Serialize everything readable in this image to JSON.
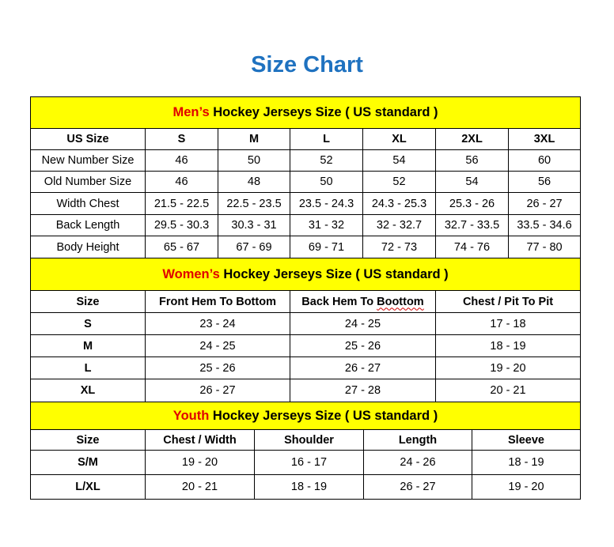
{
  "title": "Size Chart",
  "colors": {
    "title": "#1f72c0",
    "header_bg": "#ffff00",
    "accent": "#e00000"
  },
  "men": {
    "header_accent": "Men’s",
    "header_rest": " Hockey Jerseys Size ( US standard )",
    "columns": [
      "US Size",
      "S",
      "M",
      "L",
      "XL",
      "2XL",
      "3XL"
    ],
    "rows": [
      [
        "New Number Size",
        "46",
        "50",
        "52",
        "54",
        "56",
        "60"
      ],
      [
        "Old Number Size",
        "46",
        "48",
        "50",
        "52",
        "54",
        "56"
      ],
      [
        "Width Chest",
        "21.5 - 22.5",
        "22.5 - 23.5",
        "23.5 - 24.3",
        "24.3 - 25.3",
        "25.3 - 26",
        "26 - 27"
      ],
      [
        "Back Length",
        "29.5 - 30.3",
        "30.3 - 31",
        "31 - 32",
        "32 - 32.7",
        "32.7 - 33.5",
        "33.5 - 34.6"
      ],
      [
        "Body Height",
        "65 - 67",
        "67 - 69",
        "69 - 71",
        "72 - 73",
        "74 - 76",
        "77 - 80"
      ]
    ]
  },
  "women": {
    "header_accent": "Women’s",
    "header_rest": " Hockey Jerseys Size ( US standard )",
    "columns": [
      "Size",
      "Front Hem To Bottom",
      "Back Hem To Boottom",
      "Chest / Pit To Pit"
    ],
    "rows": [
      [
        "S",
        "23 - 24",
        "24 - 25",
        "17 - 18"
      ],
      [
        "M",
        "24 - 25",
        "25 - 26",
        "18 - 19"
      ],
      [
        "L",
        "25 - 26",
        "26 - 27",
        "19 - 20"
      ],
      [
        "XL",
        "26 - 27",
        "27 - 28",
        "20 - 21"
      ]
    ]
  },
  "youth": {
    "header_accent": "Youth",
    "header_rest": " Hockey Jerseys Size ( US standard )",
    "columns": [
      "Size",
      "Chest / Width",
      "Shoulder",
      "Length",
      "Sleeve"
    ],
    "rows": [
      [
        "S/M",
        "19 - 20",
        "16 - 17",
        "24 - 26",
        "18 - 19"
      ],
      [
        "L/XL",
        "20 - 21",
        "18 - 19",
        "26 - 27",
        "19 - 20"
      ]
    ]
  }
}
